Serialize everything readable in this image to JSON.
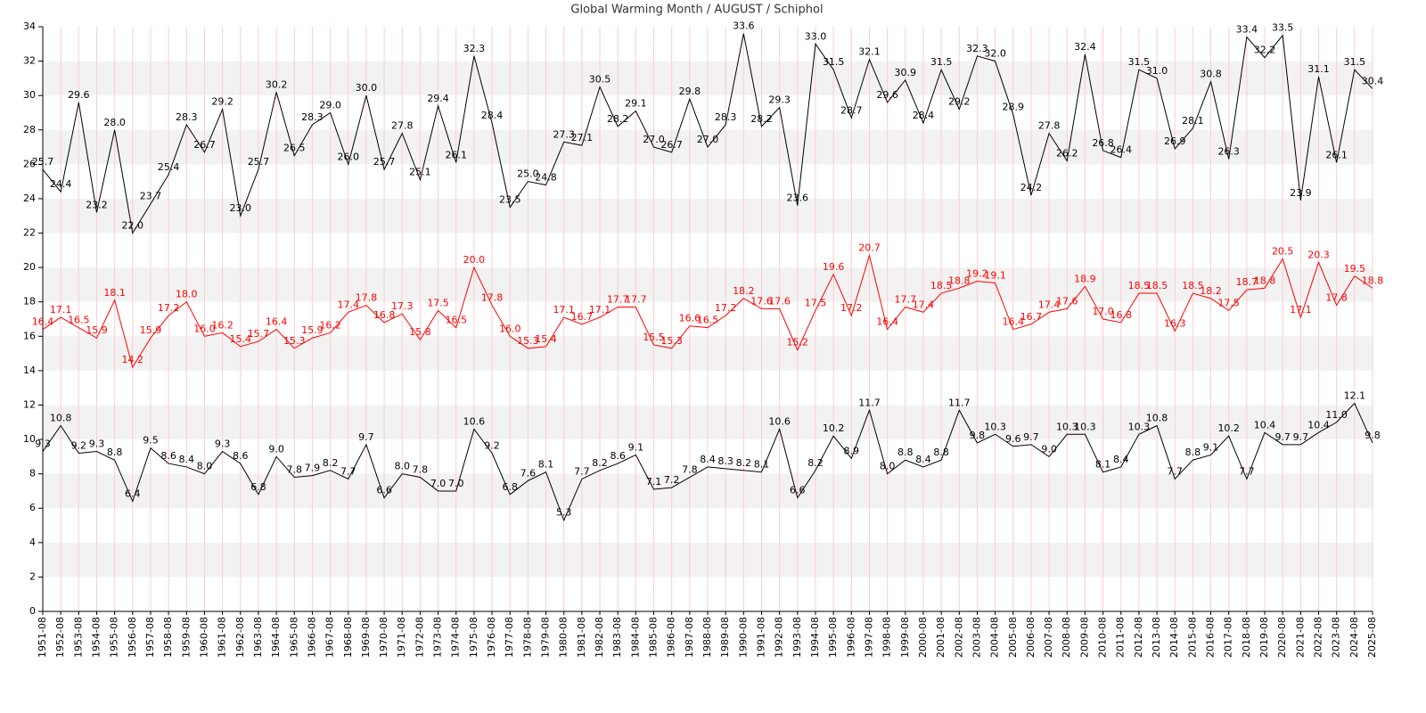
{
  "chart_data": {
    "type": "line",
    "title": "Global Warming Month / AUGUST / Schiphol",
    "categories": [
      "1951-08",
      "1952-08",
      "1953-08",
      "1954-08",
      "1955-08",
      "1956-08",
      "1957-08",
      "1958-08",
      "1959-08",
      "1960-08",
      "1961-08",
      "1962-08",
      "1963-08",
      "1964-08",
      "1965-08",
      "1966-08",
      "1967-08",
      "1968-08",
      "1969-08",
      "1970-08",
      "1971-08",
      "1972-08",
      "1973-08",
      "1974-08",
      "1975-08",
      "1976-08",
      "1977-08",
      "1978-08",
      "1979-08",
      "1980-08",
      "1981-08",
      "1982-08",
      "1983-08",
      "1984-08",
      "1985-08",
      "1986-08",
      "1987-08",
      "1988-08",
      "1989-08",
      "1990-08",
      "1991-08",
      "1992-08",
      "1993-08",
      "1994-08",
      "1995-08",
      "1996-08",
      "1997-08",
      "1998-08",
      "1999-08",
      "2000-08",
      "2001-08",
      "2002-08",
      "2003-08",
      "2004-08",
      "2005-08",
      "2006-08",
      "2007-08",
      "2008-08",
      "2009-08",
      "2010-08",
      "2011-08",
      "2012-08",
      "2013-08",
      "2014-08",
      "2015-08",
      "2016-08",
      "2017-08",
      "2018-08",
      "2019-08",
      "2020-08",
      "2021-08",
      "2022-08",
      "2023-08",
      "2024-08",
      "2025-08"
    ],
    "series": [
      {
        "color": "#000000",
        "values": [
          25.7,
          24.4,
          29.6,
          23.2,
          28,
          22,
          23.7,
          25.4,
          28.3,
          26.7,
          29.2,
          23,
          25.7,
          30.2,
          26.5,
          28.3,
          29,
          26,
          30,
          25.7,
          27.8,
          25.1,
          29.4,
          26.1,
          32.3,
          28.4,
          23.5,
          25,
          24.8,
          27.3,
          27.1,
          30.5,
          28.2,
          29.1,
          27,
          26.7,
          29.8,
          27,
          28.3,
          33.6,
          28.2,
          29.3,
          23.6,
          33,
          31.5,
          28.7,
          32.1,
          29.6,
          30.9,
          28.4,
          31.5,
          29.2,
          32.3,
          32,
          28.9,
          24.2,
          27.8,
          26.2,
          32.4,
          26.8,
          26.4,
          31.5,
          31,
          26.9,
          28.1,
          30.8,
          26.3,
          33.4,
          32.2,
          33.5,
          23.9,
          31.1,
          26.1,
          31.5,
          30.4
        ],
        "value_labels": [
          "25.7",
          "24.4",
          "29.6",
          "23.2",
          "28.0",
          "22.0",
          "23.7",
          "25.4",
          "28.3",
          "26.7",
          "29.2",
          "23.0",
          "25.7",
          "30.2",
          "26.5",
          "28.3",
          "29.0",
          "26.0",
          "30.0",
          "25.7",
          "27.8",
          "25.1",
          "29.4",
          "26.1",
          "32.3",
          "28.4",
          "23.5",
          "25.0",
          "24.8",
          "27.3",
          "27.1",
          "30.5",
          "28.2",
          "29.1",
          "27.0",
          "26.7",
          "29.8",
          "27.0",
          "28.3",
          "33.6",
          "28.2",
          "29.3",
          "23.6",
          "33.0",
          "31.5",
          "28.7",
          "32.1",
          "29.6",
          "30.9",
          "28.4",
          "31.5",
          "29.2",
          "32.3",
          "32.0",
          "28.9",
          "24.2",
          "27.8",
          "26.2",
          "32.4",
          "26.8",
          "26.4",
          "31.5",
          "31.0",
          "26.9",
          "28.1",
          "30.8",
          "26.3",
          "33.4",
          "32.2",
          "33.5",
          "23.9",
          "31.1",
          "26.1",
          "31.5",
          "30.4"
        ]
      },
      {
        "color": "#ff0000",
        "values": [
          16.4,
          17.1,
          16.5,
          15.9,
          18.1,
          14.2,
          15.9,
          17.2,
          18,
          16,
          16.2,
          15.4,
          15.7,
          16.4,
          15.3,
          15.9,
          16.2,
          17.4,
          17.8,
          16.8,
          17.3,
          15.8,
          17.5,
          16.5,
          20,
          17.8,
          16,
          15.3,
          15.4,
          17.1,
          16.7,
          17.1,
          17.7,
          17.7,
          15.5,
          15.3,
          16.6,
          16.5,
          17.2,
          18.2,
          17.6,
          17.6,
          15.2,
          17.5,
          19.6,
          17.2,
          20.7,
          16.4,
          17.7,
          17.4,
          18.5,
          18.8,
          19.2,
          19.1,
          16.4,
          16.7,
          17.4,
          17.6,
          18.9,
          17,
          16.8,
          18.5,
          18.5,
          16.3,
          18.5,
          18.2,
          17.5,
          18.7,
          18.8,
          20.5,
          17.1,
          20.3,
          17.8,
          19.5,
          18.8
        ],
        "value_labels": [
          "16.4",
          "17.1",
          "16.5",
          "15.9",
          "18.1",
          "14.2",
          "15.9",
          "17.2",
          "18.0",
          "16.0",
          "16.2",
          "15.4",
          "15.7",
          "16.4",
          "15.3",
          "15.9",
          "16.2",
          "17.4",
          "17.8",
          "16.8",
          "17.3",
          "15.8",
          "17.5",
          "16.5",
          "20.0",
          "17.8",
          "16.0",
          "15.3",
          "15.4",
          "17.1",
          "16.7",
          "17.1",
          "17.7",
          "17.7",
          "15.5",
          "15.3",
          "16.6",
          "16.5",
          "17.2",
          "18.2",
          "17.6",
          "17.6",
          "15.2",
          "17.5",
          "19.6",
          "17.2",
          "20.7",
          "16.4",
          "17.7",
          "17.4",
          "18.5",
          "18.8",
          "19.2",
          "19.1",
          "16.4",
          "16.7",
          "17.4",
          "17.6",
          "18.9",
          "17.0",
          "16.8",
          "18.5",
          "18.5",
          "16.3",
          "18.5",
          "18.2",
          "17.5",
          "18.7",
          "18.8",
          "20.5",
          "17.1",
          "20.3",
          "17.8",
          "19.5",
          "18.8"
        ]
      },
      {
        "color": "#000000",
        "values": [
          9.3,
          10.8,
          9.2,
          9.3,
          8.8,
          6.4,
          9.5,
          8.6,
          8.4,
          8,
          9.3,
          8.6,
          6.8,
          9,
          7.8,
          7.9,
          8.2,
          7.7,
          9.7,
          6.6,
          8,
          7.8,
          7,
          7,
          10.6,
          9.2,
          6.8,
          7.6,
          8.1,
          5.3,
          7.7,
          8.2,
          8.6,
          9.1,
          7.1,
          7.2,
          7.8,
          8.4,
          8.3,
          8.2,
          8.1,
          10.6,
          6.6,
          8.2,
          10.2,
          8.9,
          11.7,
          8,
          8.8,
          8.4,
          8.8,
          11.7,
          9.8,
          10.3,
          9.6,
          9.7,
          9,
          10.3,
          10.3,
          8.1,
          8.4,
          10.3,
          10.8,
          7.7,
          8.8,
          9.1,
          10.2,
          7.7,
          10.4,
          9.7,
          9.7,
          10.4,
          11,
          12.1,
          9.8
        ],
        "value_labels": [
          "9.3",
          "10.8",
          "9.2",
          "9.3",
          "8.8",
          "6.4",
          "9.5",
          "8.6",
          "8.4",
          "8.0",
          "9.3",
          "8.6",
          "6.8",
          "9.0",
          "7.8",
          "7.9",
          "8.2",
          "7.7",
          "9.7",
          "6.6",
          "8.0",
          "7.8",
          "7.0",
          "7.0",
          "10.6",
          "9.2",
          "6.8",
          "7.6",
          "8.1",
          "5.3",
          "7.7",
          "8.2",
          "8.6",
          "9.1",
          "7.1",
          "7.2",
          "7.8",
          "8.4",
          "8.3",
          "8.2",
          "8.1",
          "10.6",
          "6.6",
          "8.2",
          "10.2",
          "8.9",
          "11.7",
          "8.0",
          "8.8",
          "8.4",
          "8.8",
          "11.7",
          "9.8",
          "10.3",
          "9.6",
          "9.7",
          "9.0",
          "10.3",
          "10.3",
          "8.1",
          "8.4",
          "10.3",
          "10.8",
          "7.7",
          "8.8",
          "9.1",
          "10.2",
          "7.7",
          "10.4",
          "9.7",
          "9.7",
          "10.4",
          "11.0",
          "12.1",
          "9.8"
        ]
      }
    ],
    "ylim": [
      0,
      34
    ],
    "yticks": [
      0,
      2,
      4,
      6,
      8,
      10,
      12,
      14,
      16,
      18,
      20,
      22,
      24,
      26,
      28,
      30,
      32,
      34
    ],
    "grid": true
  }
}
